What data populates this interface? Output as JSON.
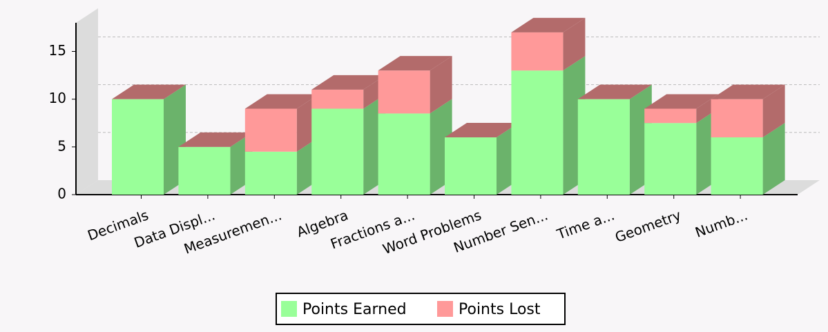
{
  "chart_data": {
    "type": "bar3d_stacked",
    "categories": [
      "Decimals",
      "Data Displ...",
      "Measuremen...",
      "Algebra",
      "Fractions a...",
      "Word Problems",
      "Number Sen...",
      "Time a...",
      "Geometry",
      "Numb..."
    ],
    "series": [
      {
        "name": "Points Earned",
        "color": "#99ff99",
        "values": [
          10,
          5,
          4.5,
          9,
          8.5,
          6,
          13,
          10,
          7.5,
          6
        ]
      },
      {
        "name": "Points Lost",
        "color": "#ff9999",
        "values": [
          0,
          0,
          4.5,
          2,
          4.5,
          0,
          4,
          0,
          1.5,
          4
        ]
      }
    ],
    "ylim": [
      0,
      18
    ],
    "yticks": [
      0,
      5,
      10,
      15
    ],
    "grid": true,
    "legend": "bottom"
  }
}
